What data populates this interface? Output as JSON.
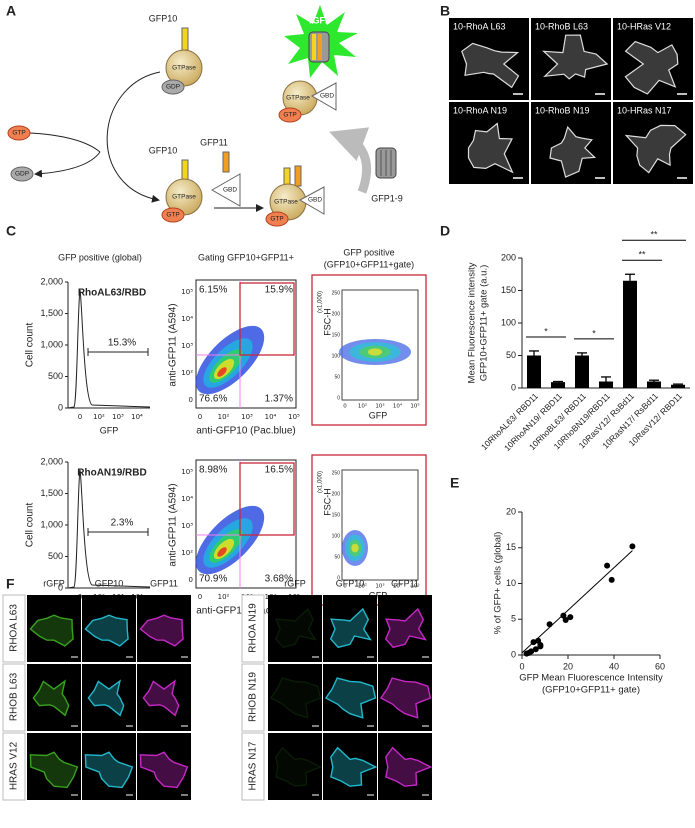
{
  "panel_a": {
    "label": "A",
    "gfp10_top": "GFP10",
    "gtpase_top": "GTPase",
    "gdp_top": "GDP",
    "gtp_left": "GTP",
    "gdp_left": "GDP",
    "gfp11": "GFP11",
    "gbd_free": "GBD",
    "gfp10_mid": "GFP10",
    "gtpase_mid": "GTPase",
    "gtp_mid": "GTP",
    "gtpase_complex": "GTPase",
    "gbd_complex": "GBD",
    "gtp_complex": "GTP",
    "rgfp": "rGFP",
    "gtpase_rgfp": "GTPase",
    "gbd_rgfp": "GBD",
    "gtp_rgfp": "GTP",
    "gfp1_9": "GFP1-9"
  },
  "panel_b": {
    "label": "B",
    "images": [
      "10-RhoA L63",
      "10-RhoB L63",
      "10-HRas V12",
      "10-RhoA N19",
      "10-RhoB N19",
      "10-HRas N17"
    ]
  },
  "panel_c": {
    "label": "C",
    "column_titles": [
      "GFP positive (global)",
      "Gating GFP10+GFP11+",
      "GFP positive",
      "(GFP10+GFP11+gate)"
    ],
    "histogram": {
      "y_label": "Cell count",
      "x_label": "GFP",
      "yticks": [
        "0",
        "500",
        "1,000",
        "1,500",
        "2,000"
      ],
      "xticks": [
        "0",
        "10²",
        "10³",
        "10⁴"
      ]
    },
    "dot_plot": {
      "y_label": "anti-GFP11 (A594)",
      "x_label": "anti-GFP10 (Pac.blue)",
      "xticks": [
        "0",
        "10²",
        "10³",
        "10⁴",
        "10⁵"
      ],
      "yticks": [
        "0",
        "10²",
        "10³",
        "10⁴",
        "10⁵"
      ]
    },
    "gated_plot": {
      "y_label": "FSC-H",
      "y_unit": "(x1,000)",
      "x_label": "GFP",
      "xticks": [
        "0",
        "10²",
        "10³",
        "10⁴",
        "10⁵"
      ],
      "yticks": [
        "0",
        "50",
        "100",
        "150",
        "200",
        "250"
      ]
    },
    "rows": [
      {
        "construct": "RhoAL63/RBD",
        "gate_percent": "15.3%",
        "quadrants": [
          "6.15%",
          "15.9%",
          "76.6%",
          "1.37%"
        ]
      },
      {
        "construct": "RhoAN19/RBD",
        "gate_percent": "2.3%",
        "quadrants": [
          "8.98%",
          "16.5%",
          "70.9%",
          "3.68%"
        ]
      }
    ]
  },
  "chart_data": [
    {
      "type": "bar",
      "panel_label": "D",
      "y_label": [
        "Mean Fluorescence intensity",
        "GFP10+GFP11+ gate (a.u.)"
      ],
      "categories": [
        "10RhoAL63/ RBD11",
        "10RhoAN19/ RBD11",
        "10RhoBL63/ RBD11",
        "10RhoBN19/RBD11",
        "10RasV12/ RsBd11",
        "10RasN17/ RsBd11",
        "10RasV12/ RBD11"
      ],
      "values": [
        50,
        9,
        50,
        10,
        165,
        10,
        5
      ],
      "errors": [
        7,
        1,
        4,
        7,
        10,
        2,
        1
      ],
      "color": "#000000",
      "ylim": [
        0,
        200
      ],
      "yticks": [
        0,
        50,
        100,
        150,
        200
      ],
      "comparisons": [
        {
          "label": "*",
          "between": [
            0,
            1
          ]
        },
        {
          "label": "*",
          "between": [
            2,
            3
          ]
        },
        {
          "label": "**",
          "between": [
            4,
            5
          ]
        },
        {
          "label": "**",
          "between": [
            4,
            6
          ]
        }
      ]
    },
    {
      "type": "scatter",
      "panel_label": "E",
      "y_label": "% of GFP+ cells (global)",
      "x_label": [
        "GFP Mean Fluorescence Intensity",
        "(GFP10+GFP11+ gate)"
      ],
      "x": [
        48,
        37,
        39,
        18,
        21,
        19,
        12,
        7,
        5,
        8,
        6,
        4,
        3,
        2,
        8
      ],
      "y": [
        15.2,
        12.5,
        10.5,
        5.5,
        5.3,
        4.9,
        4.3,
        2,
        1.8,
        1.2,
        0.8,
        0.5,
        0.3,
        0.2,
        1.4
      ],
      "fit": {
        "x": [
          0,
          48
        ],
        "y": [
          0.3,
          14.6
        ]
      },
      "color": "#000000",
      "xlim": [
        0,
        60
      ],
      "xticks": [
        0,
        20,
        40,
        60
      ],
      "ylim": [
        0,
        20
      ],
      "yticks": [
        0,
        5,
        10,
        15,
        20
      ]
    }
  ],
  "panel_f": {
    "label": "F",
    "left": {
      "columns": [
        "rGFP",
        "GFP10",
        "GFP11"
      ],
      "rows": [
        "RHOA L63",
        "RHOB L63",
        "HRAS V12"
      ]
    },
    "right": {
      "columns": [
        "rGFP",
        "GFP10",
        "GFP11"
      ],
      "rows": [
        "RHOA N19",
        "RHOB N19",
        "HRAS N17"
      ]
    }
  }
}
